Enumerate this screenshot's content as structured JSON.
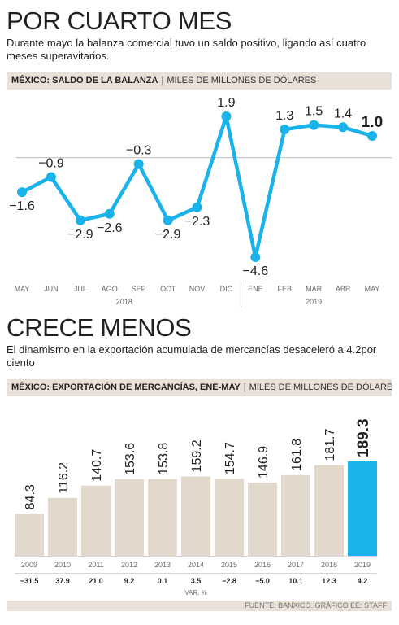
{
  "section1": {
    "title": "POR CUARTO MES",
    "subtitle": "Durante mayo la balanza comercial tuvo un saldo positivo, ligando así cuatro meses superavitarios.",
    "header_bold": "MÉXICO: SALDO DE LA BALANZA",
    "header_light": "MILES DE MILLONES DE DÓLARES"
  },
  "section2": {
    "title": "CRECE MENOS",
    "subtitle": "El dinamismo en la exportación acumulada de mercancías desaceleró a 4.2por ciento",
    "header_bold": "MÉXICO: EXPORTACIÓN DE MERCANCÍAS, ENE-MAY",
    "header_light": "MILES DE MILLONES DE DÓLARES",
    "var_label": "VAR. %"
  },
  "source": "FUENTE: BANXICO. GRÁFICO EE: STAFF",
  "colors": {
    "accent": "#1ab2ea",
    "bar": "#e2d8cc",
    "header_bg": "#e9e1d8"
  },
  "chart_data": [
    {
      "type": "line",
      "categories": [
        "MAY",
        "JUN",
        "JUL",
        "AGO",
        "SEP",
        "OCT",
        "NOV",
        "DIC",
        "ENE",
        "FEB",
        "MAR",
        "ABR",
        "MAY"
      ],
      "values": [
        -1.6,
        -0.9,
        -2.9,
        -2.6,
        -0.3,
        -2.9,
        -2.3,
        1.9,
        -4.6,
        1.3,
        1.5,
        1.4,
        1.0
      ],
      "labels": [
        "-1.6",
        "-0.9",
        "-2.9",
        "-2.6",
        "-0.3",
        "-2.9",
        "-2.3",
        "1.9",
        "-4.6",
        "1.3",
        "1.5",
        "1.4",
        "1.0"
      ],
      "year_groups": [
        {
          "label": "2018",
          "from": 0,
          "to": 7
        },
        {
          "label": "2019",
          "from": 8,
          "to": 12
        }
      ],
      "ylim": [
        -4.6,
        1.9
      ],
      "title": "MÉXICO: SALDO DE LA BALANZA",
      "ylabel": "MILES DE MILLONES DE DÓLARES",
      "grid": false,
      "zero_line": true,
      "highlight_last": true
    },
    {
      "type": "bar",
      "categories": [
        "2009",
        "2010",
        "2011",
        "2012",
        "2013",
        "2014",
        "2015",
        "2016",
        "2017",
        "2018",
        "2019"
      ],
      "values": [
        84.3,
        116.2,
        140.7,
        153.6,
        153.8,
        159.2,
        154.7,
        146.9,
        161.8,
        181.7,
        189.3
      ],
      "labels": [
        "84.3",
        "116.2",
        "140.7",
        "153.6",
        "153.8",
        "159.2",
        "154.7",
        "146.9",
        "161.8",
        "181.7",
        "189.3"
      ],
      "var_pct": [
        "-31.5",
        "37.9",
        "21.0",
        "9.2",
        "0.1",
        "3.5",
        "-2.8",
        "-5.0",
        "10.1",
        "12.3",
        "4.2"
      ],
      "ylim": [
        0,
        189.3
      ],
      "title": "MÉXICO: EXPORTACIÓN DE MERCANCÍAS, ENE-MAY",
      "ylabel": "MILES DE MILLONES DE DÓLARES",
      "grid": false,
      "highlight_last": true
    }
  ]
}
